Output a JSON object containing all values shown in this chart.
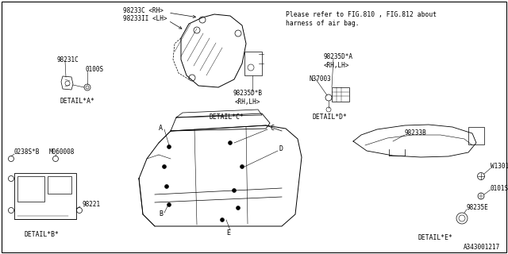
{
  "bg_color": "#ffffff",
  "line_color": "#000000",
  "text_color": "#000000",
  "diagram_number": "A343001217",
  "note_line1": "Please refer to FIG.810 , FIG.812 about",
  "note_line2": "harness of air bag.",
  "detail_a_label": "DETAIL*A*",
  "detail_b_label": "DETAIL*B*",
  "detail_c_label": "DETAIL*C*",
  "detail_d_label": "DETAIL*D*",
  "detail_e_label": "DETAIL*E*"
}
